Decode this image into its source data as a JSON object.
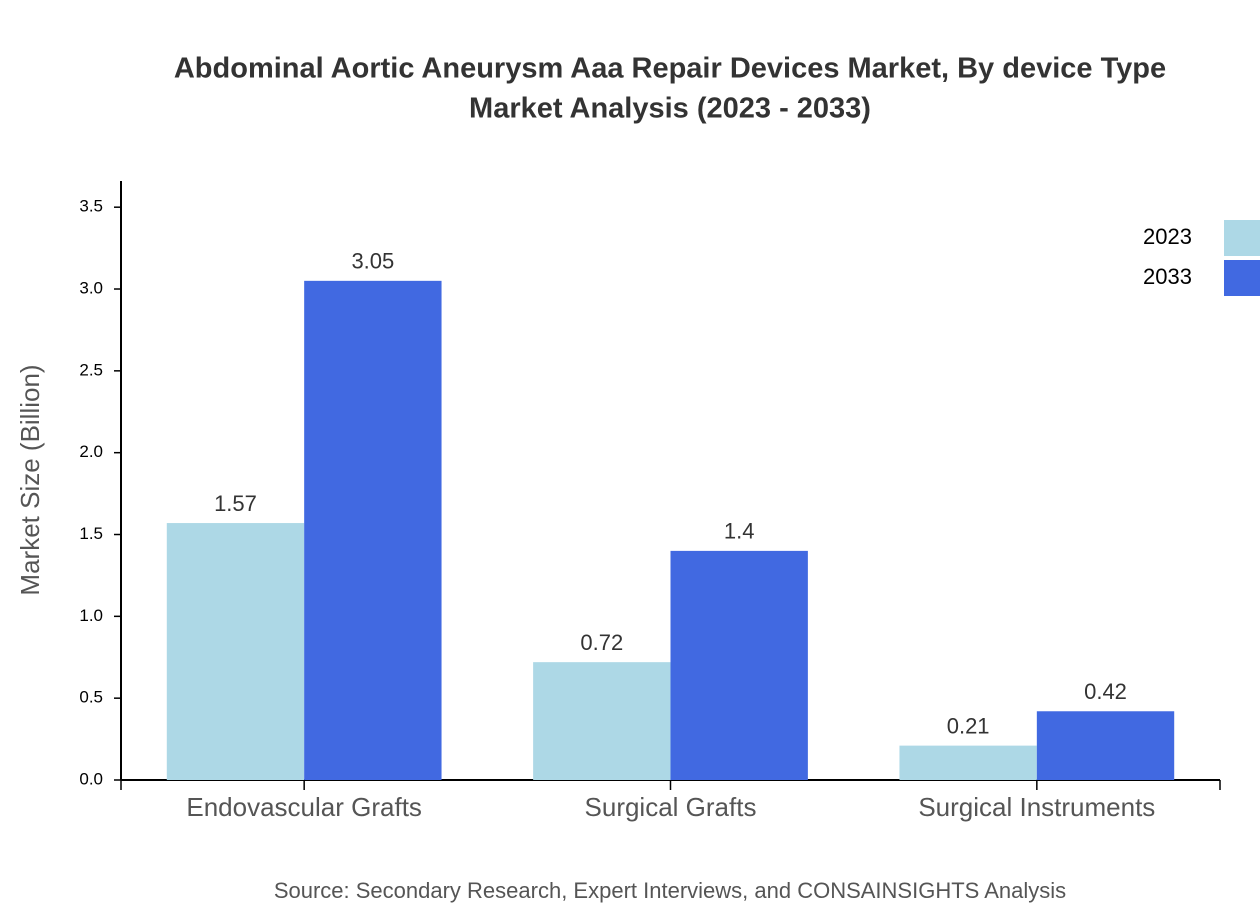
{
  "chart_data": {
    "type": "bar",
    "title": [
      "Abdominal Aortic Aneurysm Aaa Repair Devices Market, By device Type",
      "Market Analysis (2023 - 2033)"
    ],
    "y_label": "Market Size (Billion)",
    "source": "Source: Secondary Research, Expert Interviews, and CONSAINSIGHTS Analysis",
    "categories": [
      "Endovascular Grafts",
      "Surgical Grafts",
      "Surgical Instruments"
    ],
    "series": [
      {
        "name": "2023",
        "color": "#add8e6",
        "values": [
          1.57,
          0.72,
          0.21
        ]
      },
      {
        "name": "2033",
        "color": "#4169e1",
        "values": [
          3.05,
          1.4,
          0.42
        ]
      }
    ],
    "ylim": [
      0,
      3.66
    ],
    "yticks": [
      {
        "value": 0,
        "label": "0.0"
      },
      0.5,
      {
        "value": 1,
        "label": "1.0"
      },
      1.5,
      {
        "value": 2,
        "label": "2.0"
      },
      2.5,
      {
        "value": 3,
        "label": "3.0"
      },
      3.5
    ],
    "grid": false,
    "legend": "top-right"
  }
}
